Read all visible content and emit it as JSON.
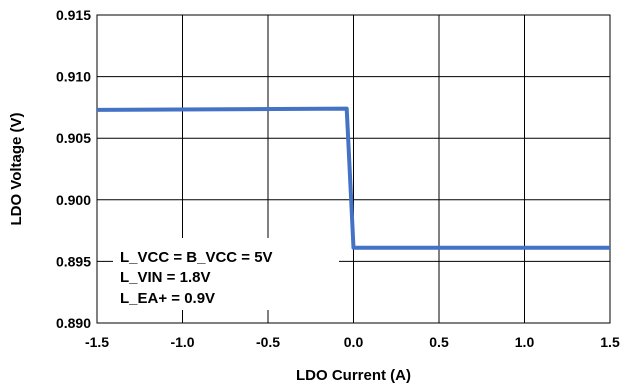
{
  "chart_data": {
    "type": "line",
    "title": "",
    "xlabel": "LDO Current (A)",
    "ylabel": "LDO Voltage (V)",
    "xlim": [
      -1.5,
      1.5
    ],
    "ylim": [
      0.89,
      0.915
    ],
    "x_ticks": [
      "-1.5",
      "-1.0",
      "-0.5",
      "0.0",
      "0.5",
      "1.0",
      "1.5"
    ],
    "y_ticks": [
      "0.890",
      "0.895",
      "0.900",
      "0.905",
      "0.910",
      "0.915"
    ],
    "grid": true,
    "legend": "none",
    "series": [
      {
        "color": "#4472C4",
        "x": [
          -1.5,
          -0.04,
          0.0,
          1.5
        ],
        "y": [
          0.9073,
          0.9074,
          0.8961,
          0.8961
        ]
      }
    ],
    "annotations": [
      "L_VCC = B_VCC = 5V",
      "L_VIN = 1.8V",
      "L_EA+ = 0.9V"
    ]
  }
}
